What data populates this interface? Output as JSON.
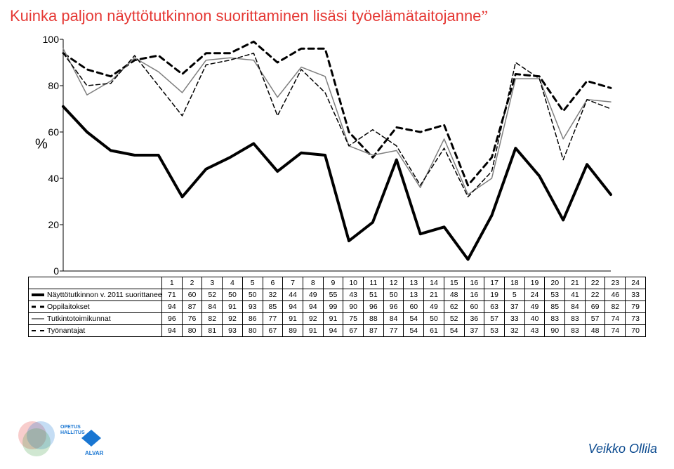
{
  "title_text": "Kuinka paljon näyttötutkinnon suorittaminen lisäsi työelämätaitojanne",
  "quote_end": "”",
  "ylabel": "%",
  "footer": "Veikko Ollila",
  "chart": {
    "type": "line",
    "categories": [
      1,
      2,
      3,
      4,
      5,
      6,
      7,
      8,
      9,
      10,
      11,
      12,
      13,
      14,
      15,
      16,
      17,
      18,
      19,
      20,
      21,
      22,
      23,
      24
    ],
    "series": [
      {
        "name": "Näyttötutkinnon v. 2011 suorittaneet",
        "values": [
          71,
          60,
          52,
          50,
          50,
          32,
          44,
          49,
          55,
          43,
          51,
          50,
          13,
          21,
          48,
          16,
          19,
          5,
          24,
          53,
          41,
          22,
          46,
          33
        ],
        "color": "#000000",
        "width": 4,
        "dash": "none"
      },
      {
        "name": "Oppilaitokset",
        "values": [
          94,
          87,
          84,
          91,
          93,
          85,
          94,
          94,
          99,
          90,
          96,
          96,
          60,
          49,
          62,
          60,
          63,
          37,
          49,
          85,
          84,
          69,
          82,
          79
        ],
        "color": "#000000",
        "width": 3,
        "dash": "8,6"
      },
      {
        "name": "Tutkintotoimikunnat",
        "values": [
          96,
          76,
          82,
          92,
          86,
          77,
          91,
          92,
          91,
          75,
          88,
          84,
          54,
          50,
          52,
          36,
          57,
          33,
          40,
          83,
          83,
          57,
          74,
          73
        ],
        "color": "#7f7f7f",
        "width": 1.5,
        "dash": "none"
      },
      {
        "name": "Työnantajat",
        "values": [
          94,
          80,
          81,
          93,
          80,
          67,
          89,
          91,
          94,
          67,
          87,
          77,
          54,
          61,
          54,
          37,
          53,
          32,
          43,
          90,
          83,
          48,
          74,
          70
        ],
        "color": "#000000",
        "width": 1.5,
        "dash": "6,4"
      }
    ],
    "ylim": [
      0,
      100
    ],
    "ytick_step": 20,
    "yticks": [
      0,
      20,
      40,
      60,
      80,
      100
    ],
    "background_color": "#ffffff",
    "axis_color": "#000000",
    "axis_width": 1
  }
}
